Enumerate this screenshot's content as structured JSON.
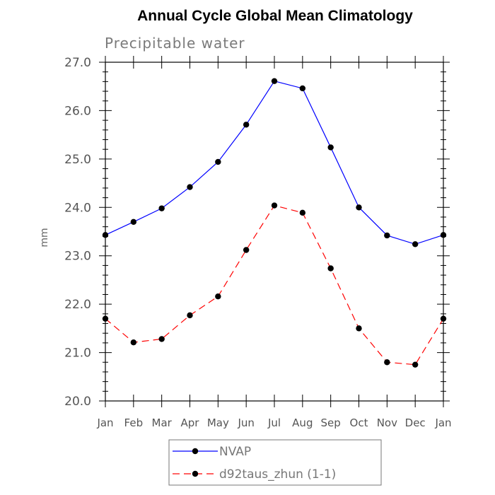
{
  "chart_data": {
    "type": "line",
    "title": "Annual Cycle Global Mean Climatology",
    "subtitle": "Precipitable water",
    "xlabel": "",
    "ylabel": "mm",
    "ylim": [
      20.0,
      27.0
    ],
    "yticks": [
      "20.0",
      "21.0",
      "22.0",
      "23.0",
      "24.0",
      "25.0",
      "26.0",
      "27.0"
    ],
    "categories": [
      "Jan",
      "Feb",
      "Mar",
      "Apr",
      "May",
      "Jun",
      "Jul",
      "Aug",
      "Sep",
      "Oct",
      "Nov",
      "Dec",
      "Jan"
    ],
    "series": [
      {
        "name": "NVAP",
        "color": "#0000ff",
        "dash": "solid",
        "values": [
          23.43,
          23.7,
          23.98,
          24.42,
          24.94,
          25.71,
          26.61,
          26.46,
          25.24,
          24.0,
          23.42,
          23.24,
          23.43
        ]
      },
      {
        "name": "d92taus_zhun (1-1)",
        "color": "#ff0000",
        "dash": "dashed",
        "values": [
          21.7,
          21.21,
          21.28,
          21.77,
          22.16,
          23.12,
          24.04,
          23.89,
          22.74,
          21.5,
          20.8,
          20.75,
          21.7
        ]
      }
    ],
    "legend_position": "bottom-center",
    "grid": false
  }
}
